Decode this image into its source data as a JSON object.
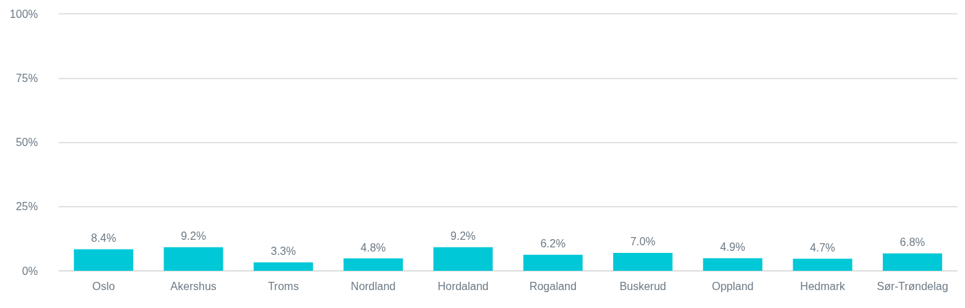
{
  "chart_data": {
    "type": "bar",
    "categories": [
      "Oslo",
      "Akershus",
      "Troms",
      "Nordland",
      "Hordaland",
      "Rogaland",
      "Buskerud",
      "Oppland",
      "Hedmark",
      "Sør-Trøndelag"
    ],
    "values": [
      8.4,
      9.2,
      3.3,
      4.8,
      9.2,
      6.2,
      7.0,
      4.9,
      4.7,
      6.8
    ],
    "value_labels": [
      "8.4%",
      "9.2%",
      "3.3%",
      "4.8%",
      "9.2%",
      "6.2%",
      "7.0%",
      "4.9%",
      "4.7%",
      "6.8%"
    ],
    "color": "#00c8d7",
    "ylim": [
      0,
      100
    ],
    "yticks": [
      {
        "value": 0,
        "label": "0%"
      },
      {
        "value": 25,
        "label": "25%"
      },
      {
        "value": 50,
        "label": "50%"
      },
      {
        "value": 75,
        "label": "75%"
      },
      {
        "value": 100,
        "label": "100%"
      }
    ],
    "grid": "y"
  }
}
